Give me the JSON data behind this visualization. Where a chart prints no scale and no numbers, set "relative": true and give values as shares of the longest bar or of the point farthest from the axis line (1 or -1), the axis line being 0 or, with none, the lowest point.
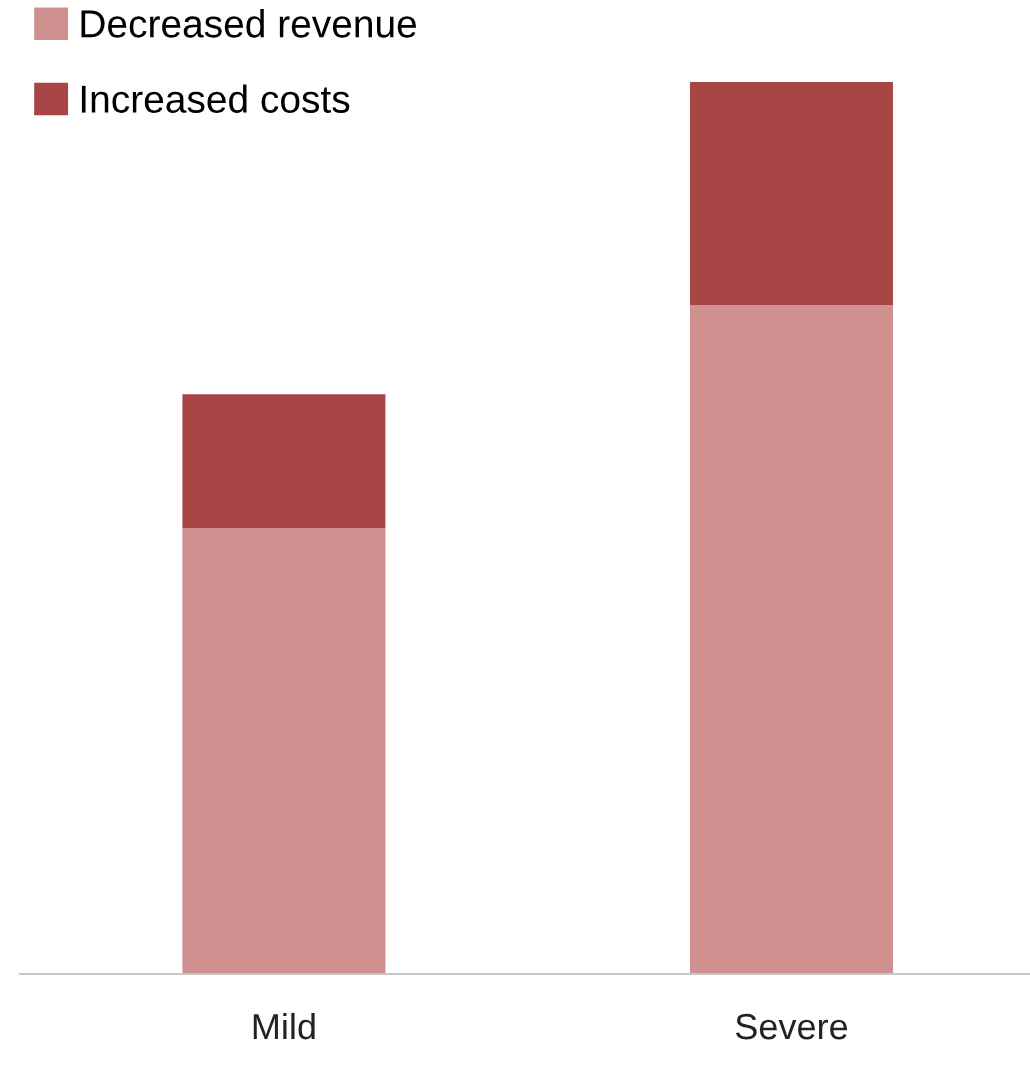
{
  "chart_data": {
    "type": "bar",
    "stacked": true,
    "relative": true,
    "categories": [
      "Mild",
      "Severe"
    ],
    "series": [
      {
        "name": "Decreased revenue",
        "color": "#d09090",
        "values": [
          0.5,
          0.75
        ]
      },
      {
        "name": "Increased costs",
        "color": "#a84646",
        "values": [
          0.15,
          0.25
        ]
      }
    ],
    "legend": "top left",
    "grid": false
  }
}
